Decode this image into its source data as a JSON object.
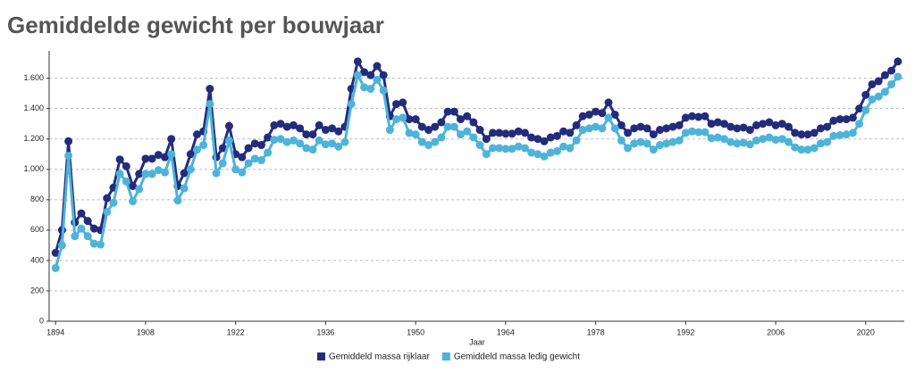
{
  "chart_data": {
    "type": "line",
    "title": "Gemiddelde gewicht per bouwjaar",
    "x_label": "Jaar",
    "x": [
      1894,
      1895,
      1896,
      1897,
      1898,
      1899,
      1900,
      1901,
      1902,
      1903,
      1904,
      1905,
      1906,
      1907,
      1908,
      1909,
      1910,
      1911,
      1912,
      1913,
      1914,
      1915,
      1916,
      1917,
      1918,
      1919,
      1920,
      1921,
      1922,
      1923,
      1924,
      1925,
      1926,
      1927,
      1928,
      1929,
      1930,
      1931,
      1932,
      1933,
      1934,
      1935,
      1936,
      1937,
      1938,
      1939,
      1940,
      1941,
      1942,
      1943,
      1944,
      1945,
      1946,
      1947,
      1948,
      1949,
      1950,
      1951,
      1952,
      1953,
      1954,
      1955,
      1956,
      1957,
      1958,
      1959,
      1960,
      1961,
      1962,
      1963,
      1964,
      1965,
      1966,
      1967,
      1968,
      1969,
      1970,
      1971,
      1972,
      1973,
      1974,
      1975,
      1976,
      1977,
      1978,
      1979,
      1980,
      1981,
      1982,
      1983,
      1984,
      1985,
      1986,
      1987,
      1988,
      1989,
      1990,
      1991,
      1992,
      1993,
      1994,
      1995,
      1996,
      1997,
      1998,
      1999,
      2000,
      2001,
      2002,
      2003,
      2004,
      2005,
      2006,
      2007,
      2008,
      2009,
      2010,
      2011,
      2012,
      2013,
      2014,
      2015,
      2016,
      2017,
      2018,
      2019,
      2020,
      2021,
      2022,
      2023,
      2024,
      2025
    ],
    "series": [
      {
        "name": "Gemiddeld massa rijklaar",
        "color": "#232c7c",
        "values": [
          450,
          600,
          1185,
          650,
          710,
          660,
          610,
          600,
          810,
          880,
          1065,
          1020,
          890,
          970,
          1070,
          1070,
          1095,
          1080,
          1200,
          890,
          975,
          1100,
          1230,
          1250,
          1530,
          1080,
          1140,
          1285,
          1100,
          1080,
          1140,
          1170,
          1160,
          1210,
          1290,
          1300,
          1280,
          1290,
          1270,
          1230,
          1230,
          1290,
          1260,
          1270,
          1250,
          1280,
          1530,
          1710,
          1640,
          1620,
          1680,
          1620,
          1350,
          1430,
          1440,
          1330,
          1330,
          1280,
          1260,
          1280,
          1310,
          1380,
          1380,
          1330,
          1350,
          1310,
          1260,
          1200,
          1240,
          1240,
          1235,
          1235,
          1250,
          1240,
          1210,
          1200,
          1185,
          1210,
          1220,
          1250,
          1240,
          1290,
          1350,
          1360,
          1380,
          1370,
          1440,
          1360,
          1290,
          1240,
          1270,
          1280,
          1270,
          1230,
          1260,
          1270,
          1280,
          1290,
          1340,
          1350,
          1345,
          1350,
          1300,
          1310,
          1300,
          1280,
          1270,
          1275,
          1260,
          1290,
          1300,
          1310,
          1290,
          1300,
          1280,
          1240,
          1230,
          1230,
          1240,
          1270,
          1280,
          1320,
          1330,
          1330,
          1340,
          1400,
          1490,
          1560,
          1580,
          1620,
          1650,
          1710
        ]
      },
      {
        "name": "Gemiddeld massa ledig gewicht",
        "color": "#4db3d9",
        "values": [
          350,
          500,
          1090,
          560,
          610,
          560,
          510,
          505,
          720,
          780,
          970,
          920,
          790,
          870,
          970,
          970,
          995,
          980,
          1100,
          795,
          875,
          1000,
          1130,
          1160,
          1430,
          975,
          1040,
          1190,
          1000,
          980,
          1040,
          1070,
          1060,
          1110,
          1195,
          1200,
          1180,
          1190,
          1170,
          1140,
          1130,
          1190,
          1165,
          1170,
          1150,
          1180,
          1430,
          1620,
          1540,
          1530,
          1590,
          1520,
          1260,
          1330,
          1340,
          1240,
          1230,
          1180,
          1160,
          1180,
          1210,
          1280,
          1280,
          1230,
          1250,
          1210,
          1160,
          1100,
          1140,
          1140,
          1135,
          1135,
          1150,
          1140,
          1110,
          1100,
          1085,
          1110,
          1120,
          1150,
          1140,
          1190,
          1260,
          1270,
          1280,
          1270,
          1340,
          1270,
          1190,
          1140,
          1170,
          1180,
          1170,
          1130,
          1160,
          1170,
          1180,
          1190,
          1240,
          1250,
          1245,
          1245,
          1205,
          1210,
          1200,
          1180,
          1170,
          1175,
          1165,
          1190,
          1200,
          1210,
          1195,
          1200,
          1180,
          1145,
          1130,
          1130,
          1140,
          1170,
          1180,
          1220,
          1225,
          1230,
          1240,
          1300,
          1390,
          1460,
          1480,
          1510,
          1560,
          1610
        ]
      }
    ],
    "xlim": [
      1893,
      2026
    ],
    "xticks": [
      1894,
      1908,
      1922,
      1936,
      1950,
      1964,
      1978,
      1992,
      2006,
      2020
    ],
    "ylim": [
      0,
      1780
    ],
    "yticks": [
      0,
      200,
      400,
      600,
      800,
      {
        "value": 1000,
        "label": "1.000"
      },
      {
        "value": 1200,
        "label": "1.200"
      },
      {
        "value": 1400,
        "label": "1.400"
      },
      {
        "value": 1600,
        "label": "1.600"
      }
    ],
    "grid": true
  }
}
